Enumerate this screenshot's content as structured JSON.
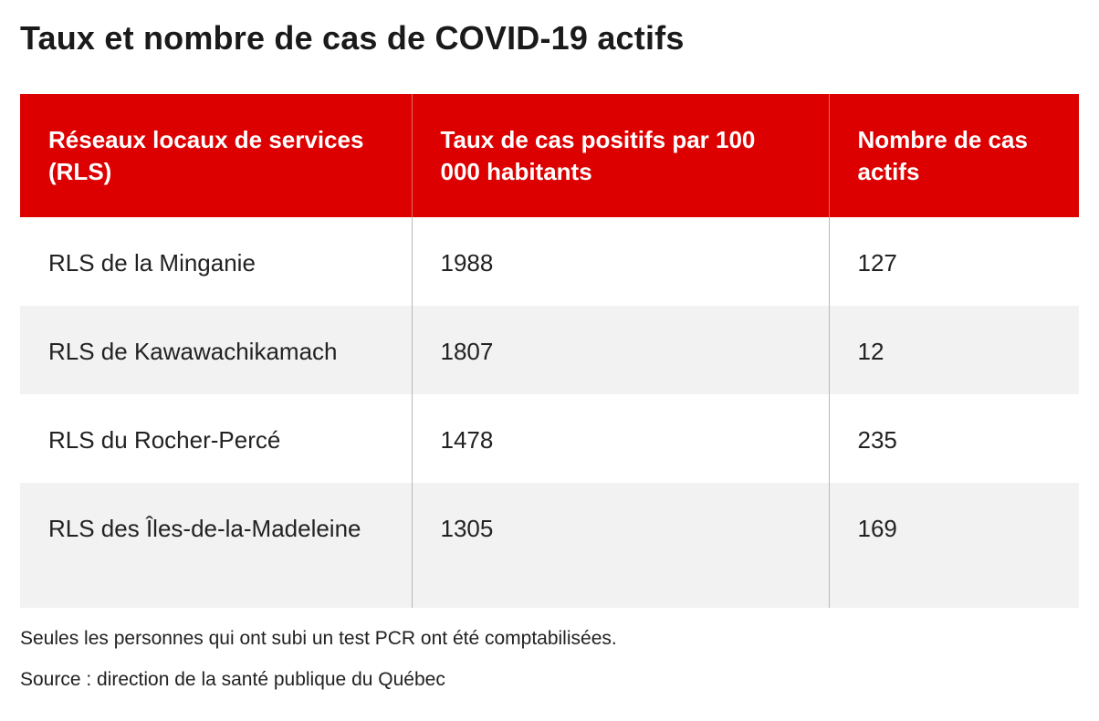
{
  "title": "Taux et nombre de cas de COVID-19 actifs",
  "chart_data": {
    "type": "table",
    "title": "Taux et nombre de cas de COVID-19 actifs",
    "columns": [
      "Réseaux locaux de services (RLS)",
      "Taux de cas positifs par 100 000 habitants",
      "Nombre de cas actifs"
    ],
    "rows": [
      {
        "rls": "RLS de la Minganie",
        "rate": 1988,
        "cases": 127
      },
      {
        "rls": "RLS de Kawawachikamach",
        "rate": 1807,
        "cases": 12
      },
      {
        "rls": "RLS du Rocher-Percé",
        "rate": 1478,
        "cases": 235
      },
      {
        "rls": "RLS des Îles-de-la-Madeleine",
        "rate": 1305,
        "cases": 169
      }
    ]
  },
  "colors": {
    "header_background": "#dd0000",
    "header_text": "#ffffff",
    "stripe_row": "#f2f2f2"
  },
  "footnotes": {
    "note": "Seules les personnes qui ont subi un test PCR ont été comptabilisées.",
    "source": "Source : direction de la santé publique du Québec"
  }
}
